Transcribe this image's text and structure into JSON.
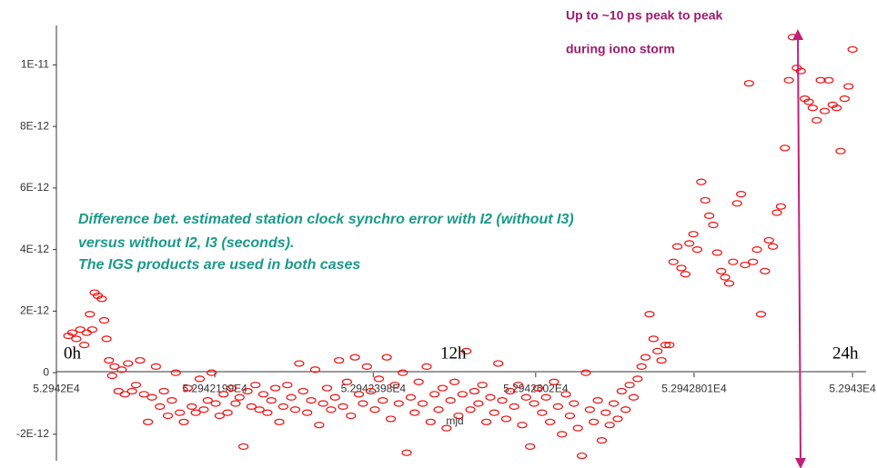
{
  "chart_data": {
    "type": "scatter",
    "annotations": [
      "Up to ~10 ps peak to peak",
      "during iono storm",
      "Difference bet. estimated station clock synchro error with I2 (without I3)",
      "versus without I2, I3 (seconds).",
      "The IGS products are used in both cases",
      "0h",
      "12h",
      "24h"
    ],
    "x_label": "mjd",
    "color": "#ee1111",
    "xlim": [
      52942,
      52943.017
    ],
    "ylim": [
      -2.86e-12,
      1.128e-11
    ],
    "xticks": [
      {
        "value": 52942,
        "label": "5.2942E4"
      },
      {
        "value": 52942.199,
        "label": "5.2942199E4"
      },
      {
        "value": 52942.398,
        "label": "5.2942398E4"
      },
      {
        "value": 52942.602,
        "label": "5.2942602E4"
      },
      {
        "value": 52942.801,
        "label": "5.2942801E4"
      },
      {
        "value": 52943,
        "label": "5.2943E4"
      }
    ],
    "yticks": [
      {
        "value": -2e-12,
        "label": "-2E-12"
      },
      0,
      {
        "value": 2e-12,
        "label": "2E-12"
      },
      {
        "value": 4e-12,
        "label": "4E-12"
      },
      {
        "value": 6e-12,
        "label": "6E-12"
      },
      {
        "value": 8e-12,
        "label": "8E-12"
      },
      {
        "value": 1e-11,
        "label": "1E-11"
      }
    ],
    "x": [
      52942.015,
      52942.02,
      52942.025,
      52942.03,
      52942.035,
      52942.038,
      52942.042,
      52942.045,
      52942.048,
      52942.052,
      52942.057,
      52942.06,
      52942.063,
      52942.066,
      52942.07,
      52942.073,
      52942.078,
      52942.082,
      52942.086,
      52942.09,
      52942.095,
      52942.1,
      52942.105,
      52942.11,
      52942.115,
      52942.12,
      52942.125,
      52942.13,
      52942.135,
      52942.14,
      52942.145,
      52942.15,
      52942.155,
      52942.16,
      52942.165,
      52942.17,
      52942.175,
      52942.18,
      52942.185,
      52942.19,
      52942.195,
      52942.2,
      52942.205,
      52942.21,
      52942.215,
      52942.22,
      52942.225,
      52942.23,
      52942.235,
      52942.24,
      52942.245,
      52942.25,
      52942.255,
      52942.26,
      52942.265,
      52942.27,
      52942.275,
      52942.28,
      52942.285,
      52942.29,
      52942.295,
      52942.3,
      52942.305,
      52942.31,
      52942.315,
      52942.32,
      52942.325,
      52942.33,
      52942.335,
      52942.34,
      52942.345,
      52942.35,
      52942.355,
      52942.36,
      52942.365,
      52942.37,
      52942.375,
      52942.38,
      52942.385,
      52942.39,
      52942.395,
      52942.4,
      52942.405,
      52942.41,
      52942.415,
      52942.42,
      52942.425,
      52942.43,
      52942.435,
      52942.44,
      52942.445,
      52942.45,
      52942.455,
      52942.46,
      52942.465,
      52942.47,
      52942.475,
      52942.48,
      52942.485,
      52942.49,
      52942.495,
      52942.5,
      52942.505,
      52942.51,
      52942.515,
      52942.52,
      52942.525,
      52942.53,
      52942.535,
      52942.54,
      52942.545,
      52942.55,
      52942.555,
      52942.56,
      52942.565,
      52942.57,
      52942.575,
      52942.58,
      52942.585,
      52942.59,
      52942.595,
      52942.6,
      52942.605,
      52942.61,
      52942.615,
      52942.62,
      52942.625,
      52942.63,
      52942.635,
      52942.64,
      52942.645,
      52942.65,
      52942.655,
      52942.66,
      52942.665,
      52942.67,
      52942.675,
      52942.68,
      52942.685,
      52942.69,
      52942.695,
      52942.7,
      52942.705,
      52942.71,
      52942.715,
      52942.72,
      52942.725,
      52942.73,
      52942.735,
      52942.74,
      52942.745,
      52942.75,
      52942.755,
      52942.76,
      52942.765,
      52942.77,
      52942.775,
      52942.78,
      52942.785,
      52942.79,
      52942.795,
      52942.8,
      52942.805,
      52942.81,
      52942.815,
      52942.82,
      52942.825,
      52942.83,
      52942.835,
      52942.84,
      52942.845,
      52942.85,
      52942.855,
      52942.86,
      52942.865,
      52942.87,
      52942.875,
      52942.88,
      52942.885,
      52942.89,
      52942.895,
      52942.9,
      52942.905,
      52942.91,
      52942.915,
      52942.92,
      52942.925,
      52942.93,
      52942.935,
      52942.94,
      52942.945,
      52942.95,
      52942.955,
      52942.96,
      52942.965,
      52942.97,
      52942.975,
      52942.98,
      52942.985,
      52942.99,
      52942.995,
      52943.0
    ],
    "values": [
      1.2e-12,
      1.3e-12,
      1.1e-12,
      1.4e-12,
      9e-13,
      1.3e-12,
      1.9e-12,
      1.4e-12,
      2.6e-12,
      2.5e-12,
      2.4e-12,
      1.7e-12,
      1.1e-12,
      4e-13,
      -1e-13,
      2e-13,
      -6e-13,
      1e-13,
      -7e-13,
      3e-13,
      -6e-13,
      -4e-13,
      4e-13,
      -7e-13,
      -1.6e-12,
      -8e-13,
      2e-13,
      -1.1e-12,
      -6e-13,
      -1.4e-12,
      -9e-13,
      0,
      -1.3e-12,
      -1.6e-12,
      -5e-13,
      -1.1e-12,
      -1.3e-12,
      -2e-13,
      -1.2e-12,
      -9e-13,
      0,
      -1e-12,
      -1.4e-12,
      -7e-13,
      -1.3e-12,
      -5e-13,
      -1e-12,
      -8e-13,
      -2.4e-12,
      -6e-13,
      -1.1e-12,
      -4e-13,
      -1.2e-12,
      -7e-13,
      -1.3e-12,
      -9e-13,
      -5e-13,
      -1.6e-12,
      -1.1e-12,
      -4e-13,
      -8e-13,
      -1.2e-12,
      3e-13,
      -6e-13,
      -1.3e-12,
      -9e-13,
      1e-13,
      -1.7e-12,
      -1e-12,
      -5e-13,
      -1.2e-12,
      -8e-13,
      4e-13,
      -1.1e-12,
      -3e-13,
      -1.4e-12,
      5e-13,
      -7e-13,
      -1e-12,
      2e-13,
      -6e-13,
      -1.2e-12,
      -2e-13,
      -9e-13,
      5e-13,
      -1.5e-12,
      -4e-13,
      -1e-12,
      0,
      -2.6e-12,
      -8e-13,
      -1.3e-12,
      -3e-13,
      -1e-12,
      2e-13,
      -1.6e-12,
      -7e-13,
      -1.2e-12,
      -5e-13,
      -1.8e-12,
      -9e-13,
      -3e-13,
      -1.4e-12,
      -7e-13,
      7e-13,
      -1.2e-12,
      -6e-13,
      -1e-12,
      -4e-13,
      -1.6e-12,
      -8e-13,
      -1.3e-12,
      3e-13,
      -9e-13,
      -1.5e-12,
      -6e-13,
      -1.1e-12,
      -4e-13,
      -1.7e-12,
      -8e-13,
      -2.4e-12,
      -1e-12,
      -5e-13,
      -1.3e-12,
      -8e-13,
      -1.6e-12,
      -3e-13,
      -1.1e-12,
      -2e-12,
      -7e-13,
      -1.4e-12,
      -1e-12,
      -1.8e-12,
      -2.7e-12,
      0,
      -1.2e-12,
      -1.6e-12,
      -9e-13,
      -2.2e-12,
      -1.3e-12,
      -1.7e-12,
      -1e-12,
      -1.5e-12,
      -6e-13,
      -1.2e-12,
      -4e-13,
      -8e-13,
      -2e-13,
      2e-13,
      5e-13,
      1.9e-12,
      1.1e-12,
      7e-13,
      4e-13,
      9e-13,
      9e-13,
      3.6e-12,
      4.1e-12,
      3.4e-12,
      3.2e-12,
      4.2e-12,
      4.5e-12,
      4e-12,
      6.2e-12,
      5.6e-12,
      5.1e-12,
      4.8e-12,
      3.9e-12,
      3.3e-12,
      3.1e-12,
      2.9e-12,
      3.6e-12,
      5.5e-12,
      5.8e-12,
      3.5e-12,
      9.4e-12,
      3.6e-12,
      4e-12,
      1.9e-12,
      3.3e-12,
      4.3e-12,
      4.1e-12,
      5.2e-12,
      5.4e-12,
      7.3e-12,
      9.5e-12,
      1.09e-11,
      9.9e-12,
      9.8e-12,
      8.9e-12,
      8.8e-12,
      8.6e-12,
      8.2e-12,
      9.5e-12,
      8.5e-12,
      9.5e-12,
      8.7e-12,
      8.6e-12,
      7.2e-12,
      8.9e-12,
      9.3e-12,
      1.05e-11
    ]
  }
}
